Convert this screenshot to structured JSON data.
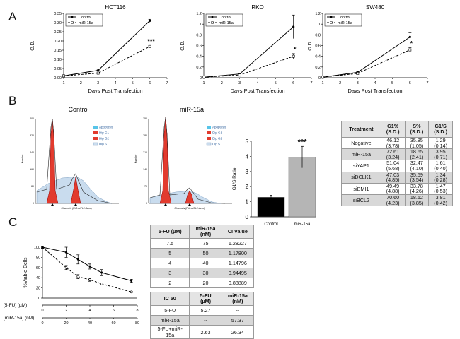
{
  "panels": {
    "a": "A",
    "b": "B",
    "c": "C"
  },
  "common": {
    "xlabel": "Days Post Transfection",
    "ylabel": "O.D.",
    "legend": [
      "Control",
      "miR-15a"
    ]
  },
  "chart_data": [
    {
      "id": "hct116",
      "type": "line",
      "title": "HCT116",
      "xlabel": "Days Post Transfection",
      "ylabel": "O.D.",
      "xlim": [
        1,
        7
      ],
      "ylim": [
        0,
        0.35
      ],
      "x_ticks": [
        "1",
        "2",
        "3",
        "4",
        "5",
        "6",
        "7"
      ],
      "y_ticks": [
        "0.00",
        "0.05",
        "0.10",
        "0.15",
        "0.20",
        "0.25",
        "0.30",
        "0.35"
      ],
      "x": [
        1,
        3,
        6
      ],
      "series": [
        {
          "name": "Control",
          "values": [
            0.01,
            0.04,
            0.31
          ],
          "err": [
            0,
            0.002,
            0.008
          ]
        },
        {
          "name": "miR-15a",
          "values": [
            0.01,
            0.025,
            0.17
          ],
          "err": [
            0,
            0.002,
            0.005
          ]
        }
      ],
      "annotation": "***"
    },
    {
      "id": "rko",
      "type": "line",
      "title": "RKO",
      "xlabel": "Days Post Transfection",
      "ylabel": "O.D.",
      "xlim": [
        1,
        7
      ],
      "ylim": [
        0,
        1.2
      ],
      "x_ticks": [
        "1",
        "2",
        "3",
        "4",
        "5",
        "6",
        "7"
      ],
      "y_ticks": [
        "0",
        "0.2",
        "0.4",
        "0.6",
        "0.8",
        "1",
        "1.2"
      ],
      "x": [
        1,
        3,
        6
      ],
      "series": [
        {
          "name": "Control",
          "values": [
            0.01,
            0.07,
            0.95
          ],
          "err": [
            0,
            0.01,
            0.22
          ]
        },
        {
          "name": "miR-15a",
          "values": [
            0.01,
            0.05,
            0.4
          ],
          "err": [
            0,
            0.01,
            0.05
          ]
        }
      ],
      "annotation": "*"
    },
    {
      "id": "sw480",
      "type": "line",
      "title": "SW480",
      "xlabel": "Days Post Transfection",
      "ylabel": "O.D.",
      "xlim": [
        1,
        7
      ],
      "ylim": [
        0,
        1.2
      ],
      "x_ticks": [
        "1",
        "2",
        "3",
        "4",
        "5",
        "6",
        "7"
      ],
      "y_ticks": [
        "0",
        "0.2",
        "0.4",
        "0.6",
        "0.8",
        "1",
        "1.2"
      ],
      "x": [
        1,
        3,
        6
      ],
      "series": [
        {
          "name": "Control",
          "values": [
            0.01,
            0.1,
            0.76
          ],
          "err": [
            0,
            0.01,
            0.08
          ]
        },
        {
          "name": "miR-15a",
          "values": [
            0.01,
            0.08,
            0.52
          ],
          "err": [
            0,
            0.01,
            0.04
          ]
        }
      ],
      "annotation": "*"
    },
    {
      "id": "g1s",
      "type": "bar",
      "ylabel": "G1/S Ratio",
      "ylim": [
        0,
        5
      ],
      "y_ticks": [
        "0",
        "1",
        "2",
        "3",
        "4",
        "5"
      ],
      "categories": [
        "Control",
        "miR-15a"
      ],
      "values": [
        1.29,
        3.95
      ],
      "err": [
        0.14,
        0.71
      ],
      "colors": [
        "#000000",
        "#b5b5b5"
      ],
      "annotation": "***"
    },
    {
      "id": "viability",
      "type": "line",
      "ylabel": "%Viable Cells",
      "ylim": [
        0,
        100
      ],
      "y_ticks": [
        "0",
        "20",
        "40",
        "60",
        "80",
        "100"
      ],
      "x_rows": [
        {
          "label": "[5-FU] (µM)",
          "ticks": [
            "0",
            "2",
            "4",
            "6",
            "8"
          ],
          "range": [
            0,
            8
          ]
        },
        {
          "label": "[miR-15a] (nM)",
          "ticks": [
            "0",
            "20",
            "40",
            "60",
            "80"
          ],
          "range": [
            0,
            80
          ]
        }
      ],
      "x": [
        0,
        20,
        30,
        40,
        50,
        75
      ],
      "series": [
        {
          "name": "5-FU + miR-15a",
          "style": "dashed",
          "values": [
            100,
            60,
            42,
            36,
            28,
            12
          ],
          "err": [
            2,
            4,
            4,
            3,
            2,
            1
          ]
        },
        {
          "name": "5-FU",
          "style": "solid",
          "values": [
            100,
            90,
            76,
            62,
            50,
            34
          ],
          "err": [
            2,
            10,
            9,
            5,
            6,
            3
          ]
        }
      ]
    }
  ],
  "flow": {
    "control": {
      "title": "Control"
    },
    "mir15a": {
      "title": "miR-15a"
    },
    "legend": [
      "Apoptosis",
      "Dip G1",
      "Dip G2",
      "Dip S"
    ],
    "xaxis": "Channels (FL2-A/FL2-Area)",
    "yaxis": "Number",
    "control_ticks": [
      "0",
      "80",
      "160",
      "240",
      "320",
      "400"
    ],
    "mir_ticks": [
      "0",
      "70",
      "140",
      "210",
      "280",
      "350"
    ]
  },
  "treatment_table": {
    "headers": [
      "Treatment",
      "G1%\n(S.D.)",
      "S%\n(S.D.)",
      "G1/S\n(S.D.)"
    ],
    "rows": [
      [
        "Negative",
        "46.12\n(3.78)",
        "35.85\n(1.05)",
        "1.29\n(0.14)"
      ],
      [
        "miR-15a",
        "72.61\n(3.24)",
        "18.65\n(2.41)",
        "3.95\n(0.71)"
      ],
      [
        "siYAP1",
        "51.04\n(5.68)",
        "32.47\n(4.10)",
        "1.61\n(0.40)"
      ],
      [
        "siDCLK1",
        "47.03\n(4.85)",
        "35.59\n(3.54)",
        "1.34\n(0.28)"
      ],
      [
        "siBMI1",
        "49.49\n(4.88)",
        "33.78\n(4.26)",
        "1.47\n(0.53)"
      ],
      [
        "siBCL2",
        "70.60\n(4.23)",
        "18.52\n(3.85)",
        "3.81\n(0.42)"
      ]
    ]
  },
  "ci_table": {
    "headers": [
      "5-FU (µM)",
      "miR-15a\n(nM)",
      "CI Value"
    ],
    "rows": [
      [
        "7.5",
        "75",
        "1.28227"
      ],
      [
        "5",
        "50",
        "1.17800"
      ],
      [
        "4",
        "40",
        "1.14796"
      ],
      [
        "3",
        "30",
        "0.94495"
      ],
      [
        "2",
        "20",
        "0.88889"
      ]
    ]
  },
  "ic50_table": {
    "headers": [
      "IC 50",
      "5-FU\n(µM)",
      "miR-15a\n(nM)"
    ],
    "rows": [
      [
        "5-FU",
        "5.27",
        "--"
      ],
      [
        "miR-15a",
        "--",
        "57.37"
      ],
      [
        "5-FU+miR-\n15a",
        "2.63",
        "26.34"
      ]
    ]
  }
}
